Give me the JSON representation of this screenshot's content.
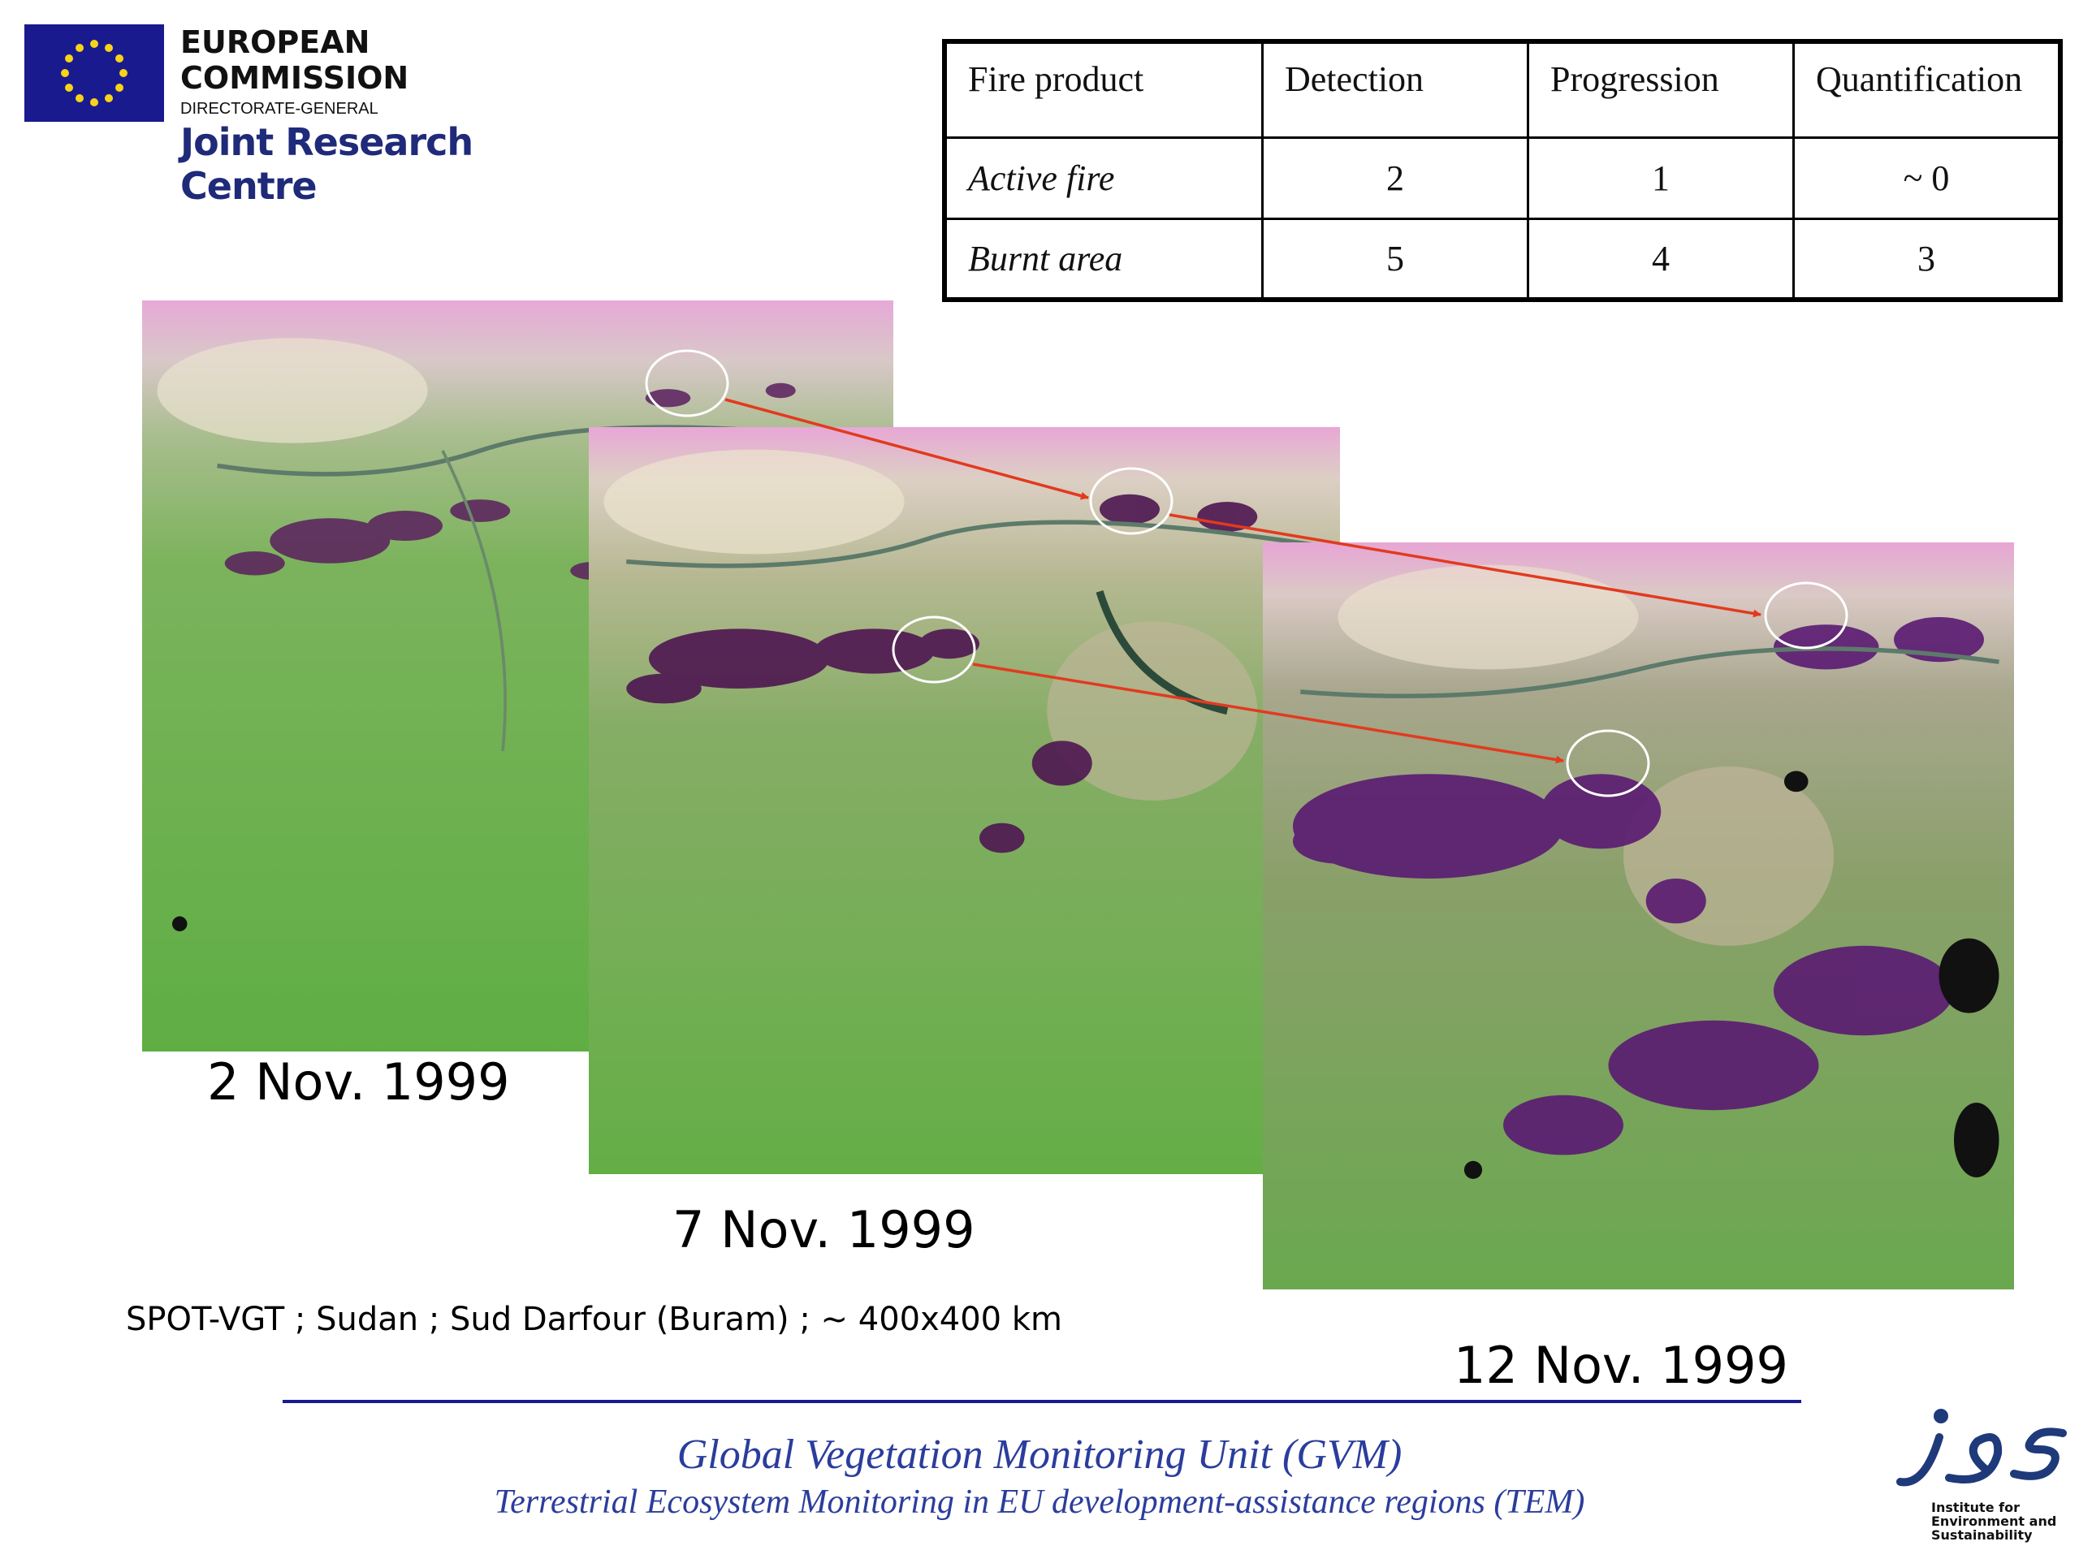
{
  "header": {
    "organization": "EUROPEAN COMMISSION",
    "directorate": "DIRECTORATE-GENERAL",
    "centre": "Joint Research Centre"
  },
  "table": {
    "headers": [
      "Fire product",
      "Detection",
      "Progression",
      "Quantification"
    ],
    "rows": [
      {
        "label": "Active fire",
        "values": [
          "2",
          "1",
          "~ 0"
        ]
      },
      {
        "label": "Burnt area",
        "values": [
          "5",
          "4",
          "3"
        ]
      }
    ]
  },
  "images": [
    {
      "date": "2 Nov. 1999"
    },
    {
      "date": "7 Nov. 1999"
    },
    {
      "date": "12 Nov. 1999"
    }
  ],
  "caption": "SPOT-VGT ; Sudan ; Sud Darfour (Buram) ; ~ 400x400 km",
  "footer": {
    "line1": "Global Vegetation Monitoring Unit (GVM)",
    "line2": "Terrestrial Ecosystem Monitoring in EU development-assistance regions (TEM)"
  },
  "ies_logo": {
    "mark": "ies",
    "text": [
      "Institute for",
      "Environment and",
      "Sustainability"
    ]
  },
  "colors": {
    "brand_blue": "#1a1a8f",
    "text_blue": "#2b3d9c",
    "arrow_red": "#e23a1f",
    "vegetation_green": "#6aa84f",
    "burnt_purple": "#5a1f5e",
    "desert_pink": "#e6a6d6"
  }
}
